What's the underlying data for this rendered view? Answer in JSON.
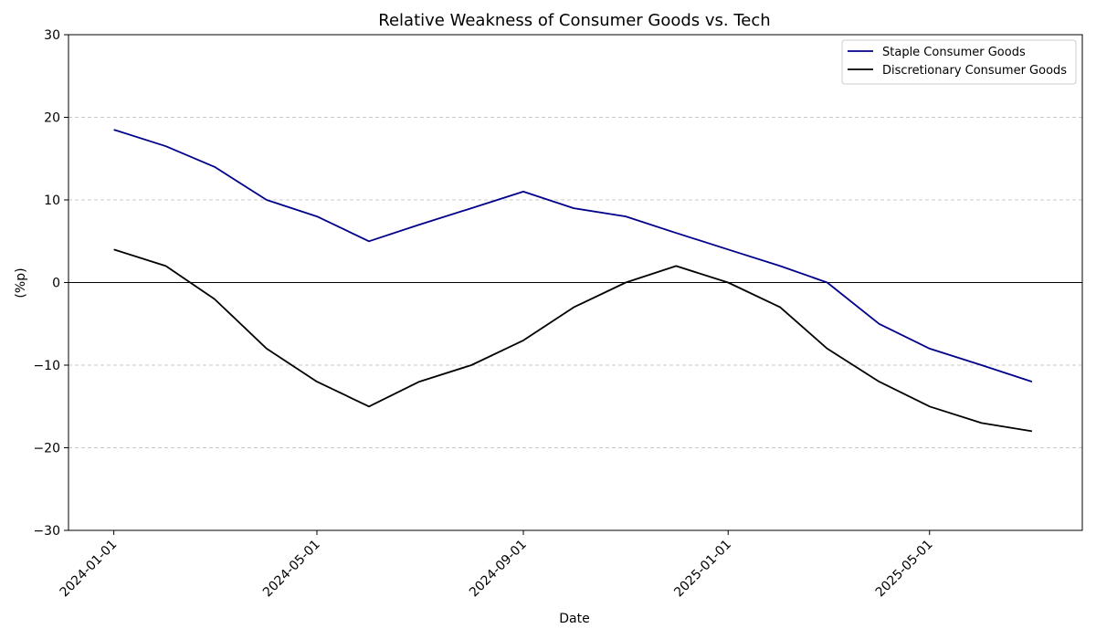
{
  "chart_data": {
    "type": "line",
    "title": "Relative Weakness of Consumer Goods vs. Tech",
    "xlabel": "Date",
    "ylabel": "(%p)",
    "x": [
      "2024-01-01",
      "2024-02-01",
      "2024-03-01",
      "2024-04-01",
      "2024-05-01",
      "2024-06-01",
      "2024-07-01",
      "2024-08-01",
      "2024-09-01",
      "2024-10-01",
      "2024-11-01",
      "2024-12-01",
      "2025-01-01",
      "2025-02-01",
      "2025-03-01",
      "2025-04-01",
      "2025-05-01",
      "2025-06-01",
      "2025-07-01"
    ],
    "x_ticks": [
      "2024-01-01",
      "2024-05-01",
      "2024-09-01",
      "2025-01-01",
      "2025-05-01"
    ],
    "xlim": [
      "2023-12-05",
      "2025-07-31"
    ],
    "ylim": [
      -30,
      30
    ],
    "y_ticks": [
      30,
      20,
      10,
      0,
      -10,
      -20,
      -30
    ],
    "y_tick_labels": [
      "30",
      "20",
      "10",
      "0",
      "−10",
      "−20",
      "−30"
    ],
    "grid": {
      "axis": "y",
      "style": "dashed",
      "color": "#c8c8c8"
    },
    "zero_line": true,
    "legend": "top-right",
    "series": [
      {
        "name": "Staple Consumer Goods",
        "color": "#00008b",
        "values": [
          18.5,
          16.5,
          14,
          10,
          8,
          5,
          7,
          9,
          11,
          9,
          8,
          6,
          4,
          2,
          0,
          -5,
          -8,
          -10,
          -12
        ]
      },
      {
        "name": "Discretionary Consumer Goods",
        "color": "#000000",
        "values": [
          4,
          2,
          -2,
          -8,
          -12,
          -15,
          -12,
          -10,
          -7,
          -3,
          0,
          2,
          0,
          -3,
          -8,
          -12,
          -15,
          -17,
          -18
        ]
      }
    ]
  }
}
